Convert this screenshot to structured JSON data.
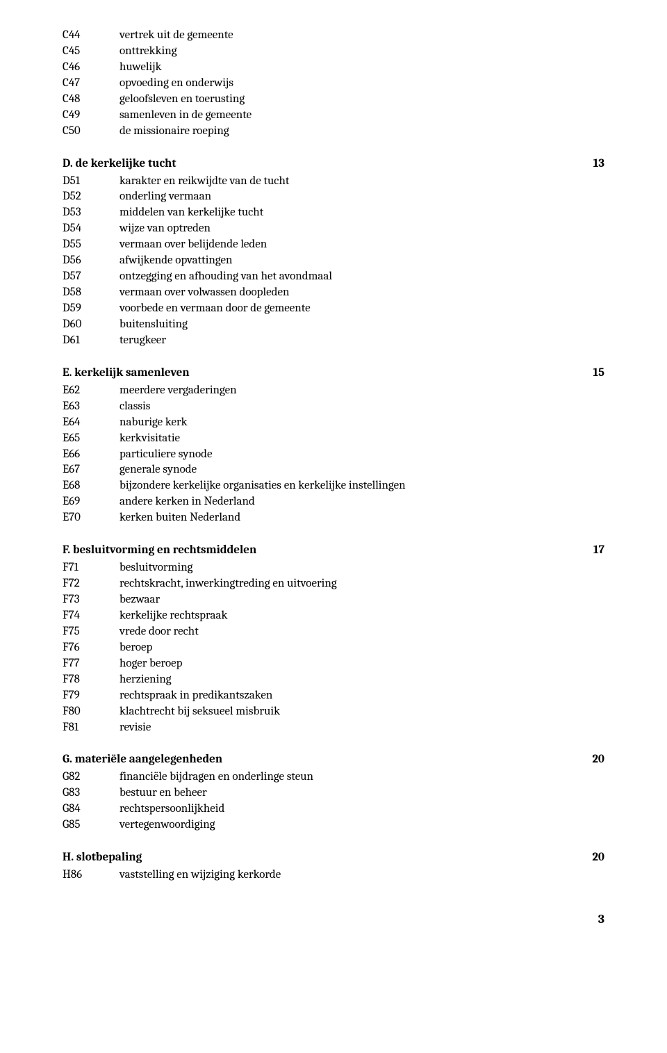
{
  "sections": [
    {
      "heading": null,
      "page": null,
      "items": [
        {
          "code": "C44",
          "desc": "vertrek uit de gemeente"
        },
        {
          "code": "C45",
          "desc": "onttrekking"
        },
        {
          "code": "C46",
          "desc": "huwelijk"
        },
        {
          "code": "C47",
          "desc": "opvoeding en onderwijs"
        },
        {
          "code": "C48",
          "desc": "geloofsleven en toerusting"
        },
        {
          "code": "C49",
          "desc": "samenleven in de gemeente"
        },
        {
          "code": "C50",
          "desc": "de missionaire roeping"
        }
      ]
    },
    {
      "heading": "D.  de kerkelijke tucht",
      "page": "13",
      "items": [
        {
          "code": "D51",
          "desc": "karakter en reikwijdte van de tucht"
        },
        {
          "code": "D52",
          "desc": "onderling vermaan"
        },
        {
          "code": "D53",
          "desc": "middelen van kerkelijke tucht"
        },
        {
          "code": "D54",
          "desc": "wijze van optreden"
        },
        {
          "code": "D55",
          "desc": "vermaan over belijdende leden"
        },
        {
          "code": "D56",
          "desc": "afwijkende opvattingen"
        },
        {
          "code": "D57",
          "desc": "ontzegging en afhouding van het avondmaal"
        },
        {
          "code": "D58",
          "desc": "vermaan over volwassen doopleden"
        },
        {
          "code": "D59",
          "desc": "voorbede en vermaan door de gemeente"
        },
        {
          "code": "D60",
          "desc": "buitensluiting"
        },
        {
          "code": "D61",
          "desc": "terugkeer"
        }
      ]
    },
    {
      "heading": "E. kerkelijk samenleven",
      "page": "15",
      "items": [
        {
          "code": "E62",
          "desc": "meerdere vergaderingen"
        },
        {
          "code": "E63",
          "desc": "classis"
        },
        {
          "code": "E64",
          "desc": "naburige kerk"
        },
        {
          "code": "E65",
          "desc": "kerkvisitatie"
        },
        {
          "code": "E66",
          "desc": "particuliere synode"
        },
        {
          "code": "E67",
          "desc": "generale synode"
        },
        {
          "code": "E68",
          "desc": "bijzondere kerkelijke organisaties en kerkelijke instellingen"
        },
        {
          "code": "E69",
          "desc": "andere kerken in Nederland"
        },
        {
          "code": "E70",
          "desc": "kerken buiten Nederland"
        }
      ]
    },
    {
      "heading": "F. besluitvorming en rechtsmiddelen",
      "page": "17",
      "items": [
        {
          "code": "F71",
          "desc": "besluitvorming"
        },
        {
          "code": "F72",
          "desc": "rechtskracht, inwerkingtreding en uitvoering"
        },
        {
          "code": "F73",
          "desc": "bezwaar"
        },
        {
          "code": "F74",
          "desc": "kerkelijke rechtspraak"
        },
        {
          "code": "F75",
          "desc": "vrede door recht"
        },
        {
          "code": "F76",
          "desc": "beroep"
        },
        {
          "code": "F77",
          "desc": "hoger beroep"
        },
        {
          "code": "F78",
          "desc": "herziening"
        },
        {
          "code": "F79",
          "desc": "rechtspraak in predikantszaken"
        },
        {
          "code": "F80",
          "desc": "klachtrecht bij seksueel misbruik"
        },
        {
          "code": "F81",
          "desc": "revisie"
        }
      ]
    },
    {
      "heading": "G.  materiële aangelegenheden",
      "page": "20",
      "items": [
        {
          "code": "G82",
          "desc": "financiële bijdragen en onderlinge steun"
        },
        {
          "code": "G83",
          "desc": "bestuur en beheer"
        },
        {
          "code": "G84",
          "desc": "rechtspersoonlijkheid"
        },
        {
          "code": "G85",
          "desc": "vertegenwoordiging"
        }
      ]
    },
    {
      "heading": "H.  slotbepaling",
      "page": "20",
      "items": [
        {
          "code": "H86",
          "desc": "vaststelling en wijziging kerkorde"
        }
      ]
    }
  ],
  "page_number": "3"
}
